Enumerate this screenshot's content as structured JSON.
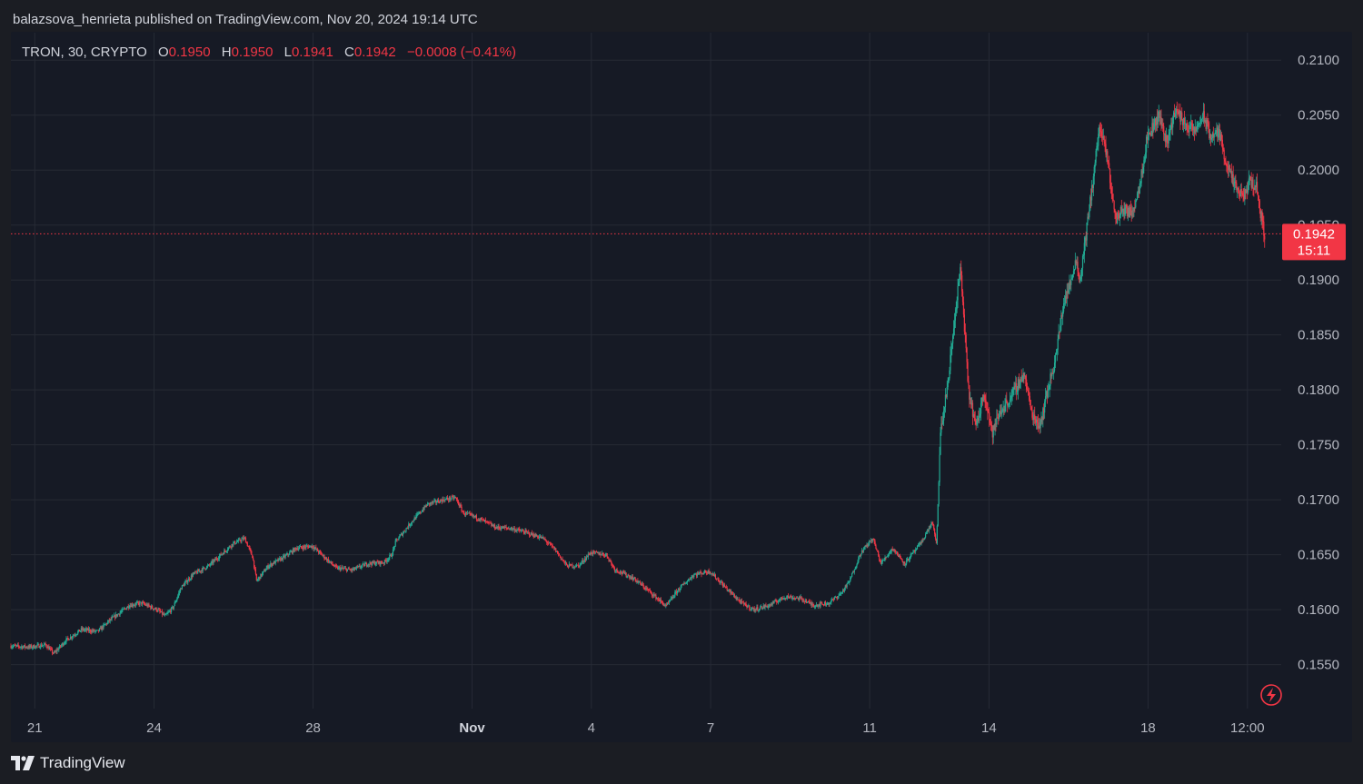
{
  "header": {
    "publisher_line": "balazsova_henrieta published on TradingView.com, Nov 20, 2024 19:14 UTC"
  },
  "legend": {
    "symbol": "TRON, 30, CRYPTO",
    "open_label": "O",
    "open": "0.1950",
    "high_label": "H",
    "high": "0.1950",
    "low_label": "L",
    "low": "0.1941",
    "close_label": "C",
    "close": "0.1942",
    "change": "−0.0008 (−0.41%)"
  },
  "price_tag": {
    "price": "0.1942",
    "countdown": "15:11"
  },
  "footer": {
    "brand": "TradingView"
  },
  "colors": {
    "up": "#22ab94",
    "down": "#f23645",
    "background": "#161a25",
    "grid": "#262a35",
    "text": "#b2b5be"
  },
  "chart_data": {
    "type": "candlestick",
    "symbol": "TRON",
    "timeframe": "30",
    "exchange": "CRYPTO",
    "ylim": [
      0.151,
      0.2125
    ],
    "y_ticks": [
      "0.2100",
      "0.2050",
      "0.2000",
      "0.1950",
      "0.1900",
      "0.1850",
      "0.1800",
      "0.1750",
      "0.1700",
      "0.1650",
      "0.1600",
      "0.1550"
    ],
    "y_tick_values": [
      0.21,
      0.205,
      0.2,
      0.195,
      0.19,
      0.185,
      0.18,
      0.175,
      0.17,
      0.165,
      0.16,
      0.155
    ],
    "x_ticks": [
      {
        "label": "21",
        "x": 0.6
      },
      {
        "label": "24",
        "x": 3.6
      },
      {
        "label": "28",
        "x": 7.6
      },
      {
        "label": "Nov",
        "x": 11.6,
        "bold": true
      },
      {
        "label": "4",
        "x": 14.6
      },
      {
        "label": "7",
        "x": 17.6
      },
      {
        "label": "11",
        "x": 21.6
      },
      {
        "label": "14",
        "x": 24.6
      },
      {
        "label": "18",
        "x": 28.6
      },
      {
        "label": "12:00",
        "x": 31.1
      }
    ],
    "xlim": [
      0,
      31.95
    ],
    "last_price": 0.1942,
    "price_path": [
      [
        0.0,
        0.1567
      ],
      [
        0.5,
        0.1566
      ],
      [
        0.9,
        0.1568
      ],
      [
        1.1,
        0.156
      ],
      [
        1.4,
        0.1572
      ],
      [
        1.8,
        0.1582
      ],
      [
        2.2,
        0.158
      ],
      [
        2.5,
        0.159
      ],
      [
        3.0,
        0.1604
      ],
      [
        3.3,
        0.1606
      ],
      [
        3.7,
        0.16
      ],
      [
        3.9,
        0.1594
      ],
      [
        4.1,
        0.1602
      ],
      [
        4.3,
        0.162
      ],
      [
        4.6,
        0.1632
      ],
      [
        5.0,
        0.164
      ],
      [
        5.3,
        0.165
      ],
      [
        5.6,
        0.166
      ],
      [
        5.9,
        0.1665
      ],
      [
        6.1,
        0.1648
      ],
      [
        6.2,
        0.1626
      ],
      [
        6.5,
        0.164
      ],
      [
        6.9,
        0.1648
      ],
      [
        7.2,
        0.1656
      ],
      [
        7.6,
        0.1658
      ],
      [
        7.9,
        0.1648
      ],
      [
        8.2,
        0.1638
      ],
      [
        8.6,
        0.1636
      ],
      [
        9.0,
        0.1642
      ],
      [
        9.4,
        0.1643
      ],
      [
        9.6,
        0.165
      ],
      [
        9.7,
        0.1662
      ],
      [
        10.1,
        0.168
      ],
      [
        10.5,
        0.1696
      ],
      [
        10.9,
        0.17
      ],
      [
        11.2,
        0.1702
      ],
      [
        11.4,
        0.1688
      ],
      [
        11.8,
        0.1683
      ],
      [
        12.2,
        0.1675
      ],
      [
        12.6,
        0.1674
      ],
      [
        13.0,
        0.167
      ],
      [
        13.4,
        0.1665
      ],
      [
        13.7,
        0.1655
      ],
      [
        14.0,
        0.164
      ],
      [
        14.3,
        0.164
      ],
      [
        14.6,
        0.1652
      ],
      [
        15.0,
        0.165
      ],
      [
        15.2,
        0.1637
      ],
      [
        15.7,
        0.1628
      ],
      [
        16.1,
        0.1616
      ],
      [
        16.5,
        0.1603
      ],
      [
        16.8,
        0.1618
      ],
      [
        17.2,
        0.1632
      ],
      [
        17.6,
        0.1635
      ],
      [
        18.0,
        0.162
      ],
      [
        18.4,
        0.1606
      ],
      [
        18.7,
        0.16
      ],
      [
        19.1,
        0.1604
      ],
      [
        19.5,
        0.1612
      ],
      [
        19.9,
        0.161
      ],
      [
        20.2,
        0.1604
      ],
      [
        20.6,
        0.1606
      ],
      [
        20.9,
        0.1615
      ],
      [
        21.1,
        0.1625
      ],
      [
        21.4,
        0.1652
      ],
      [
        21.7,
        0.1665
      ],
      [
        21.9,
        0.1642
      ],
      [
        22.2,
        0.1656
      ],
      [
        22.5,
        0.1642
      ],
      [
        22.9,
        0.166
      ],
      [
        23.2,
        0.168
      ],
      [
        23.3,
        0.1658
      ],
      [
        23.4,
        0.176
      ],
      [
        23.6,
        0.181
      ],
      [
        23.8,
        0.188
      ],
      [
        23.9,
        0.191
      ],
      [
        24.0,
        0.186
      ],
      [
        24.1,
        0.18
      ],
      [
        24.3,
        0.1765
      ],
      [
        24.5,
        0.18
      ],
      [
        24.7,
        0.176
      ],
      [
        24.9,
        0.178
      ],
      [
        25.2,
        0.1795
      ],
      [
        25.5,
        0.1815
      ],
      [
        25.7,
        0.1778
      ],
      [
        25.9,
        0.1768
      ],
      [
        26.1,
        0.18
      ],
      [
        26.3,
        0.183
      ],
      [
        26.5,
        0.188
      ],
      [
        26.7,
        0.19
      ],
      [
        26.8,
        0.1922
      ],
      [
        26.9,
        0.1898
      ],
      [
        27.1,
        0.1952
      ],
      [
        27.3,
        0.201
      ],
      [
        27.4,
        0.204
      ],
      [
        27.6,
        0.201
      ],
      [
        27.8,
        0.1955
      ],
      [
        28.0,
        0.1965
      ],
      [
        28.2,
        0.196
      ],
      [
        28.4,
        0.1985
      ],
      [
        28.6,
        0.203
      ],
      [
        28.9,
        0.205
      ],
      [
        29.1,
        0.2025
      ],
      [
        29.3,
        0.2055
      ],
      [
        29.6,
        0.204
      ],
      [
        29.8,
        0.2035
      ],
      [
        30.0,
        0.205
      ],
      [
        30.2,
        0.203
      ],
      [
        30.4,
        0.2035
      ],
      [
        30.6,
        0.2005
      ],
      [
        30.8,
        0.1985
      ],
      [
        31.0,
        0.1975
      ],
      [
        31.2,
        0.199
      ],
      [
        31.35,
        0.1985
      ],
      [
        31.5,
        0.195
      ],
      [
        31.55,
        0.1942
      ]
    ]
  }
}
